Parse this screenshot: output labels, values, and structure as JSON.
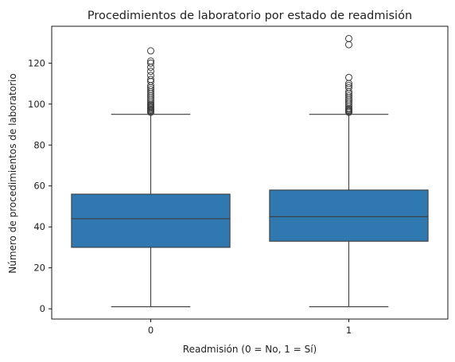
{
  "chart_data": {
    "type": "boxplot",
    "title": "Procedimientos de laboratorio por estado de readmisión",
    "xlabel": "Readmisión (0 = No, 1 = Sí)",
    "ylabel": "Número de procedimientos de laboratorio",
    "categories": [
      "0",
      "1"
    ],
    "ylim": [
      -5,
      138
    ],
    "yticks": [
      0,
      20,
      40,
      60,
      80,
      100,
      120
    ],
    "box_color": "#2f78b0",
    "edge_color": "#3d3d3d",
    "grid": false,
    "boxes": [
      {
        "category": "0",
        "whisker_low": 1,
        "q1": 30,
        "median": 44,
        "q3": 56,
        "whisker_high": 95,
        "outliers": [
          96,
          96.5,
          97,
          97.5,
          98,
          98.5,
          99,
          99.5,
          100,
          101,
          102,
          103,
          104,
          105,
          106,
          107,
          108,
          109,
          111,
          112,
          114,
          116,
          118,
          120,
          121,
          126
        ]
      },
      {
        "category": "1",
        "whisker_low": 1,
        "q1": 33,
        "median": 45,
        "q3": 58,
        "whisker_high": 95,
        "outliers": [
          96,
          96.5,
          97,
          97.5,
          98,
          99,
          100,
          101,
          102,
          103,
          104,
          105,
          106,
          108,
          109,
          110,
          113,
          129,
          132
        ]
      }
    ]
  }
}
